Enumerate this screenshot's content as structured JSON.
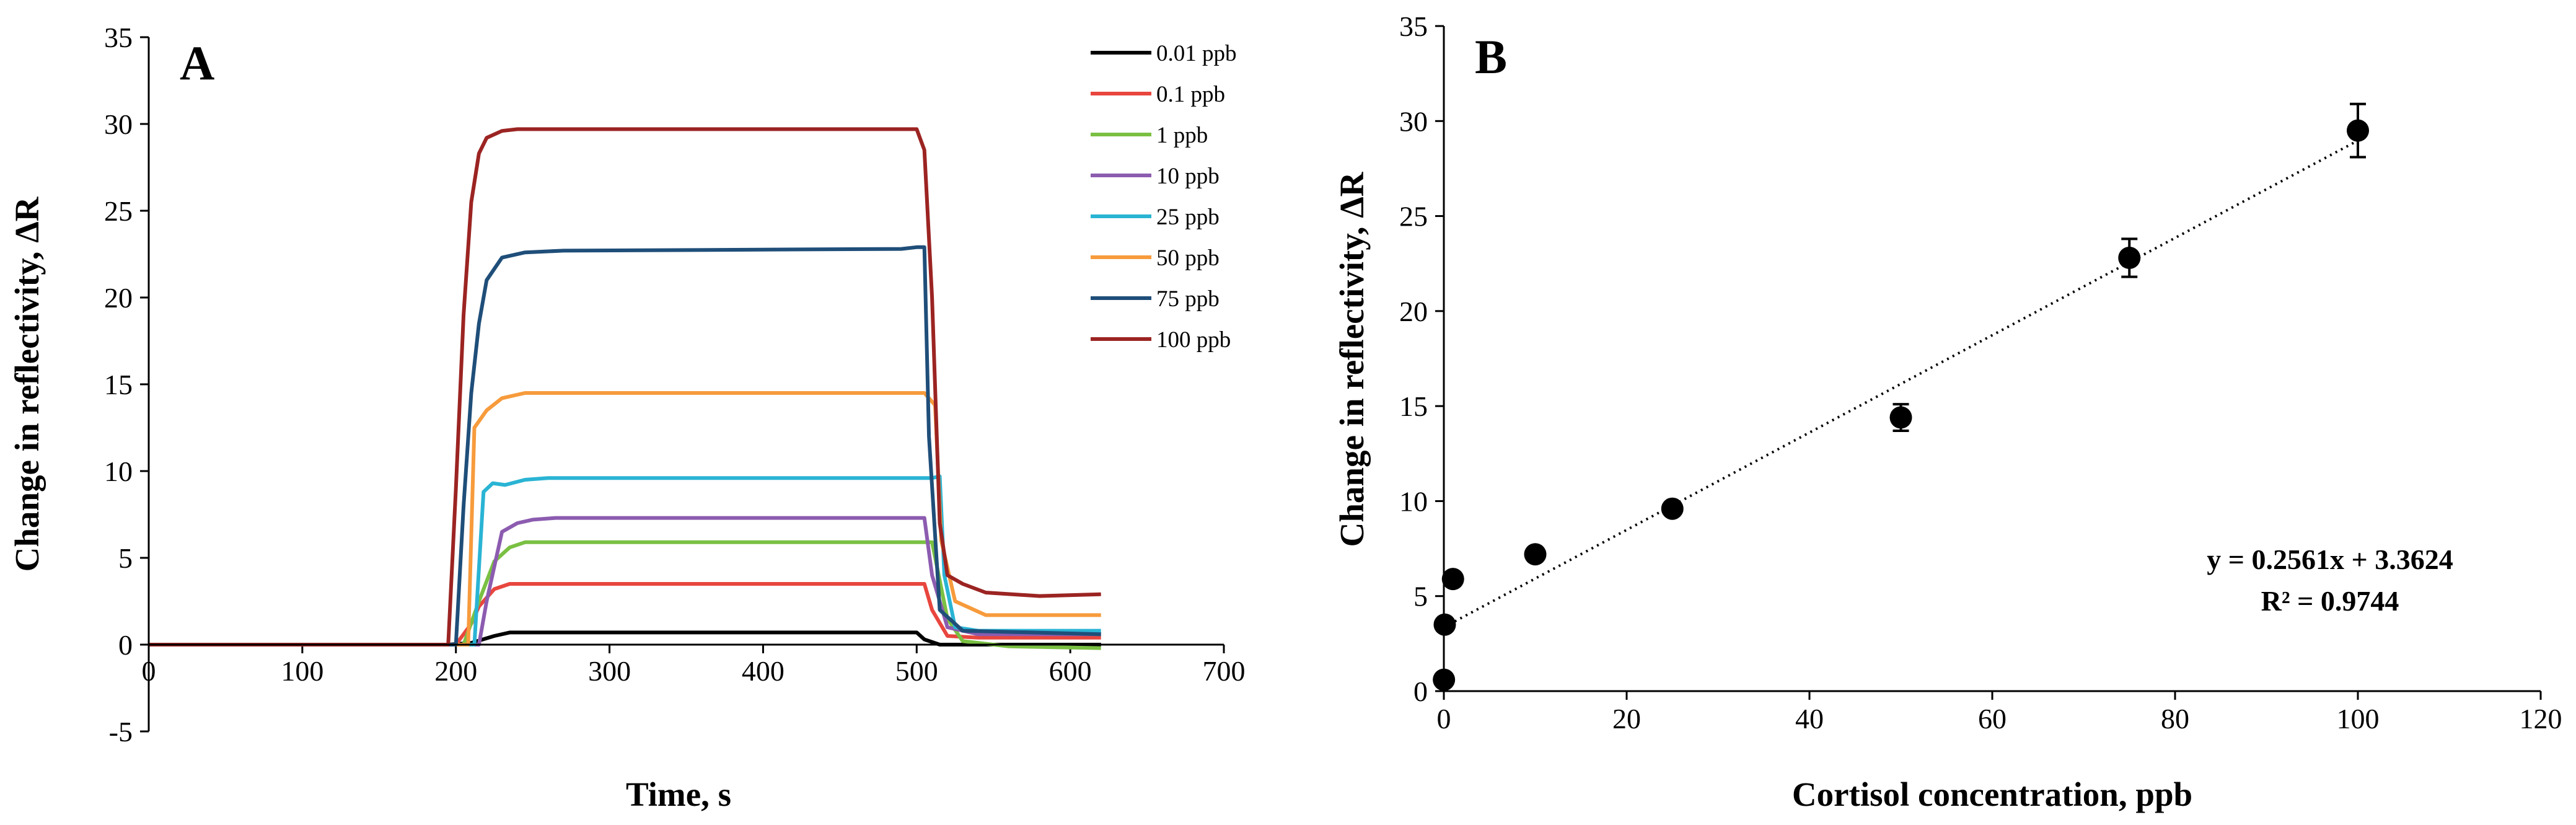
{
  "chart_data": [
    {
      "type": "line",
      "panel": "A",
      "xlabel": "Time, s",
      "ylabel": "Change in reflectivity, ΔR",
      "xlim": [
        0,
        700
      ],
      "ylim": [
        -5,
        35
      ],
      "x_ticks": [
        "0",
        "100",
        "200",
        "300",
        "400",
        "500",
        "600",
        "700"
      ],
      "y_ticks": [
        "35",
        "30",
        "25",
        "20",
        "15",
        "10",
        "5",
        "0",
        "-5"
      ],
      "legend_position": "right",
      "series": [
        {
          "name": "0.01 ppb",
          "color": "#000000",
          "x": [
            0,
            195,
            210,
            225,
            235,
            250,
            500,
            505,
            515,
            525,
            620
          ],
          "y": [
            0,
            0,
            0.1,
            0.5,
            0.7,
            0.7,
            0.7,
            0.3,
            0,
            0,
            0
          ]
        },
        {
          "name": "0.1 ppb",
          "color": "#e8463e",
          "x": [
            0,
            200,
            210,
            215,
            225,
            235,
            250,
            505,
            510,
            520,
            540,
            620
          ],
          "y": [
            0,
            0,
            1.2,
            2.2,
            3.2,
            3.5,
            3.5,
            3.5,
            2.0,
            0.5,
            0.4,
            0.4
          ]
        },
        {
          "name": "1 ppb",
          "color": "#7ac043",
          "x": [
            0,
            205,
            215,
            225,
            235,
            245,
            260,
            510,
            520,
            530,
            560,
            620
          ],
          "y": [
            0,
            0,
            2.5,
            4.8,
            5.6,
            5.9,
            5.9,
            5.9,
            1.5,
            0.2,
            -0.1,
            -0.2
          ]
        },
        {
          "name": "10 ppb",
          "color": "#8c5cb0",
          "x": [
            0,
            215,
            220,
            230,
            240,
            250,
            265,
            505,
            510,
            520,
            540,
            620
          ],
          "y": [
            0,
            0,
            2.5,
            6.5,
            7.0,
            7.2,
            7.3,
            7.3,
            4.0,
            1.0,
            0.6,
            0.6
          ]
        },
        {
          "name": "25 ppb",
          "color": "#2ab4d4",
          "x": [
            0,
            212,
            218,
            224,
            232,
            245,
            260,
            500,
            510,
            515,
            518,
            525,
            540,
            620
          ],
          "y": [
            0,
            0,
            8.8,
            9.3,
            9.2,
            9.5,
            9.6,
            9.6,
            9.6,
            9.7,
            4.0,
            1.0,
            0.8,
            0.8
          ]
        },
        {
          "name": "50 ppb",
          "color": "#f79b3c",
          "x": [
            0,
            208,
            212,
            220,
            230,
            245,
            260,
            505,
            512,
            516,
            525,
            545,
            620
          ],
          "y": [
            0,
            0,
            12.5,
            13.5,
            14.2,
            14.5,
            14.5,
            14.5,
            13.8,
            6.0,
            2.5,
            1.7,
            1.7
          ]
        },
        {
          "name": "75 ppb",
          "color": "#1f4e79",
          "x": [
            0,
            200,
            205,
            210,
            215,
            220,
            230,
            245,
            270,
            490,
            500,
            505,
            508,
            515,
            530,
            620
          ],
          "y": [
            0,
            0,
            8.0,
            14.5,
            18.5,
            21.0,
            22.3,
            22.6,
            22.7,
            22.8,
            22.9,
            22.9,
            12.0,
            2.0,
            0.8,
            0.6
          ]
        },
        {
          "name": "100 ppb",
          "color": "#9b2422",
          "x": [
            0,
            195,
            200,
            205,
            210,
            215,
            220,
            230,
            240,
            260,
            500,
            505,
            510,
            515,
            520,
            530,
            545,
            580,
            620
          ],
          "y": [
            0,
            0,
            9.0,
            19.0,
            25.5,
            28.3,
            29.2,
            29.6,
            29.7,
            29.7,
            29.7,
            28.5,
            20.0,
            7.0,
            4.0,
            3.5,
            3.0,
            2.8,
            2.9
          ]
        }
      ]
    },
    {
      "type": "scatter",
      "panel": "B",
      "xlabel": "Cortisol concentration, ppb",
      "ylabel": "Change in reflectivity, ΔR",
      "xlim": [
        0,
        120
      ],
      "ylim": [
        0,
        35
      ],
      "x_ticks": [
        "0",
        "20",
        "40",
        "60",
        "80",
        "100",
        "120"
      ],
      "y_ticks": [
        "35",
        "30",
        "25",
        "20",
        "15",
        "10",
        "5",
        "0"
      ],
      "points": [
        {
          "x": 0.01,
          "y": 0.6,
          "err": 0
        },
        {
          "x": 0.1,
          "y": 3.5,
          "err": 0
        },
        {
          "x": 1,
          "y": 5.9,
          "err": 0
        },
        {
          "x": 10,
          "y": 7.2,
          "err": 0
        },
        {
          "x": 25,
          "y": 9.6,
          "err": 0
        },
        {
          "x": 50,
          "y": 14.4,
          "err": 0.7
        },
        {
          "x": 75,
          "y": 22.8,
          "err": 1.0
        },
        {
          "x": 100,
          "y": 29.5,
          "err": 1.4
        }
      ],
      "trendline": {
        "slope": 0.2561,
        "intercept": 3.3624,
        "x_range": [
          0,
          100
        ],
        "style": "dotted"
      },
      "equation": "y = 0.2561x + 3.3624",
      "r_squared": "R² = 0.9744"
    }
  ],
  "panel_labels": {
    "a": "A",
    "b": "B"
  }
}
